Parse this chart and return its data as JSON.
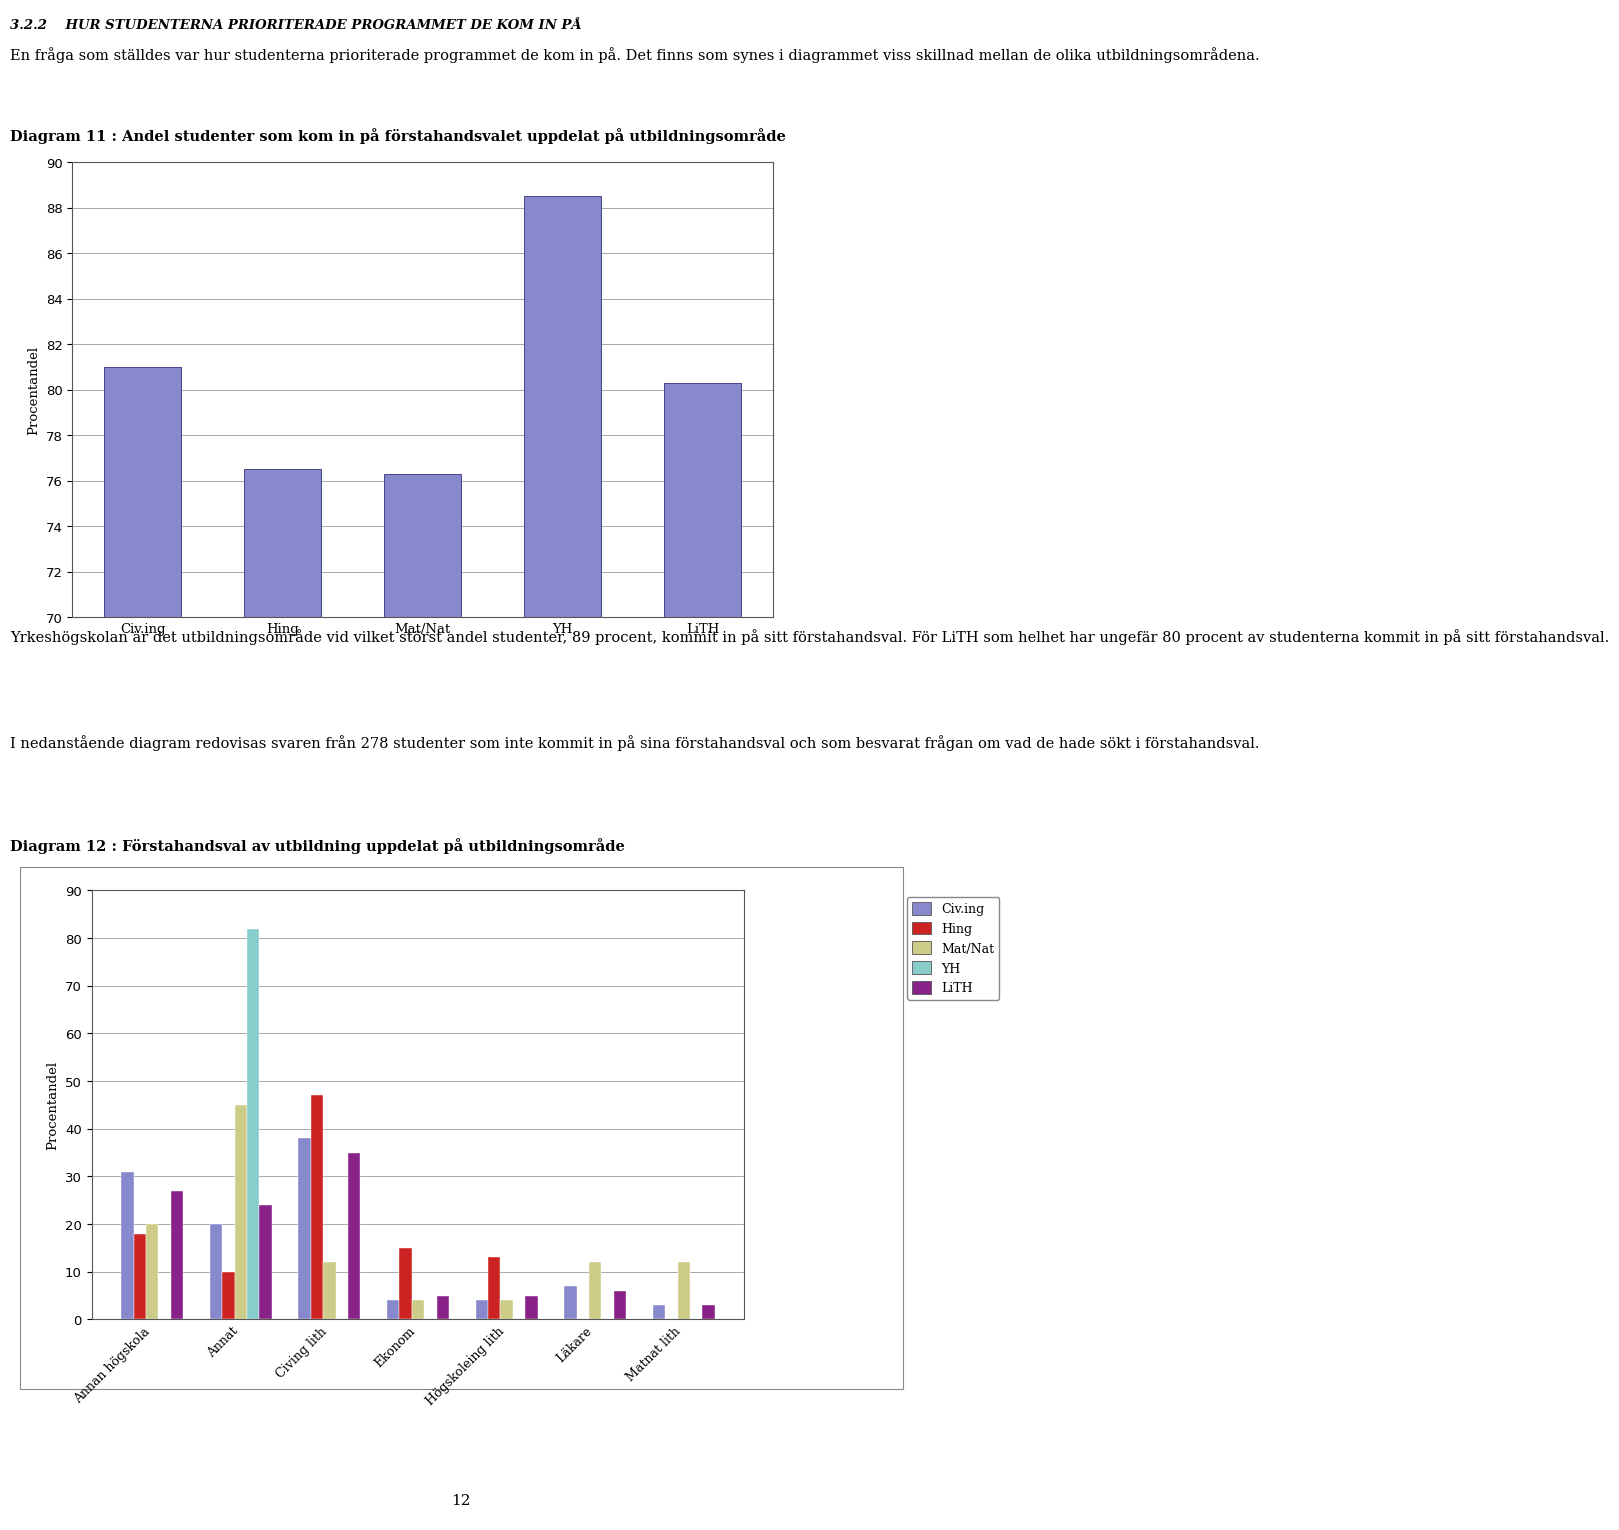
{
  "page_header": "3.2.2    HUR STUDENTERNA PRIORITERADE PROGRAMMET DE KOM IN PÅ",
  "page_text1": "En fråga som ställdes var hur studenterna prioriterade programmet de kom in på. Det finns som synes i diagrammet viss skillnad mellan de olika utbildningsområdena.",
  "diagram11_title": "Diagram 11 : Andel studenter som kom in på förstahandsvalet uppdelat på utbildningsområde",
  "diagram11_categories": [
    "Civ.ing",
    "Hing",
    "Mat/Nat",
    "YH",
    "LiTH"
  ],
  "diagram11_values": [
    81,
    76.5,
    76.3,
    88.5,
    80.3
  ],
  "diagram11_bar_color": "#8888cc",
  "diagram11_bar_edge_color": "#444488",
  "diagram11_ylim": [
    70,
    90
  ],
  "diagram11_yticks": [
    70,
    72,
    74,
    76,
    78,
    80,
    82,
    84,
    86,
    88,
    90
  ],
  "diagram11_ylabel": "Procentandel",
  "text_paragraph1": "Yrkeshögskolan är det utbildningsområde vid vilket störst andel studenter, 89 procent, kommit in på sitt förstahandsval. För LiTH som helhet har ungefär 80 procent av studenterna kommit in på sitt förstahandsval.",
  "text_paragraph2": "I nedanstående diagram redovisas svaren från 278 studenter som inte kommit in på sina förstahandsval och som besvarat frågan om vad de hade sökt i förstahandsval.",
  "diagram12_title": "Diagram 12 : Förstahandsval av utbildning uppdelat på utbildningsområde",
  "diagram12_categories": [
    "Annan högskola",
    "Annat",
    "Civing lith",
    "Ekonom",
    "Högskoleing lith",
    "Läkare",
    "Matnat lith"
  ],
  "diagram12_series": {
    "Civ.ing": [
      31,
      20,
      38,
      4,
      4,
      7,
      3
    ],
    "Hing": [
      18,
      10,
      47,
      15,
      13,
      0,
      0
    ],
    "Mat/Nat": [
      20,
      45,
      12,
      4,
      4,
      12,
      12
    ],
    "YH": [
      0,
      82,
      0,
      0,
      0,
      0,
      0
    ],
    "LiTH": [
      27,
      24,
      35,
      5,
      5,
      6,
      3
    ]
  },
  "diagram12_series_colors": {
    "Civ.ing": "#8888cc",
    "Hing": "#cc2222",
    "Mat/Nat": "#cccc88",
    "YH": "#88cccc",
    "LiTH": "#882288"
  },
  "diagram12_ylim": [
    0,
    90
  ],
  "diagram12_yticks": [
    0,
    10,
    20,
    30,
    40,
    50,
    60,
    70,
    80,
    90
  ],
  "diagram12_ylabel": "Procentandel",
  "page_number": "12"
}
